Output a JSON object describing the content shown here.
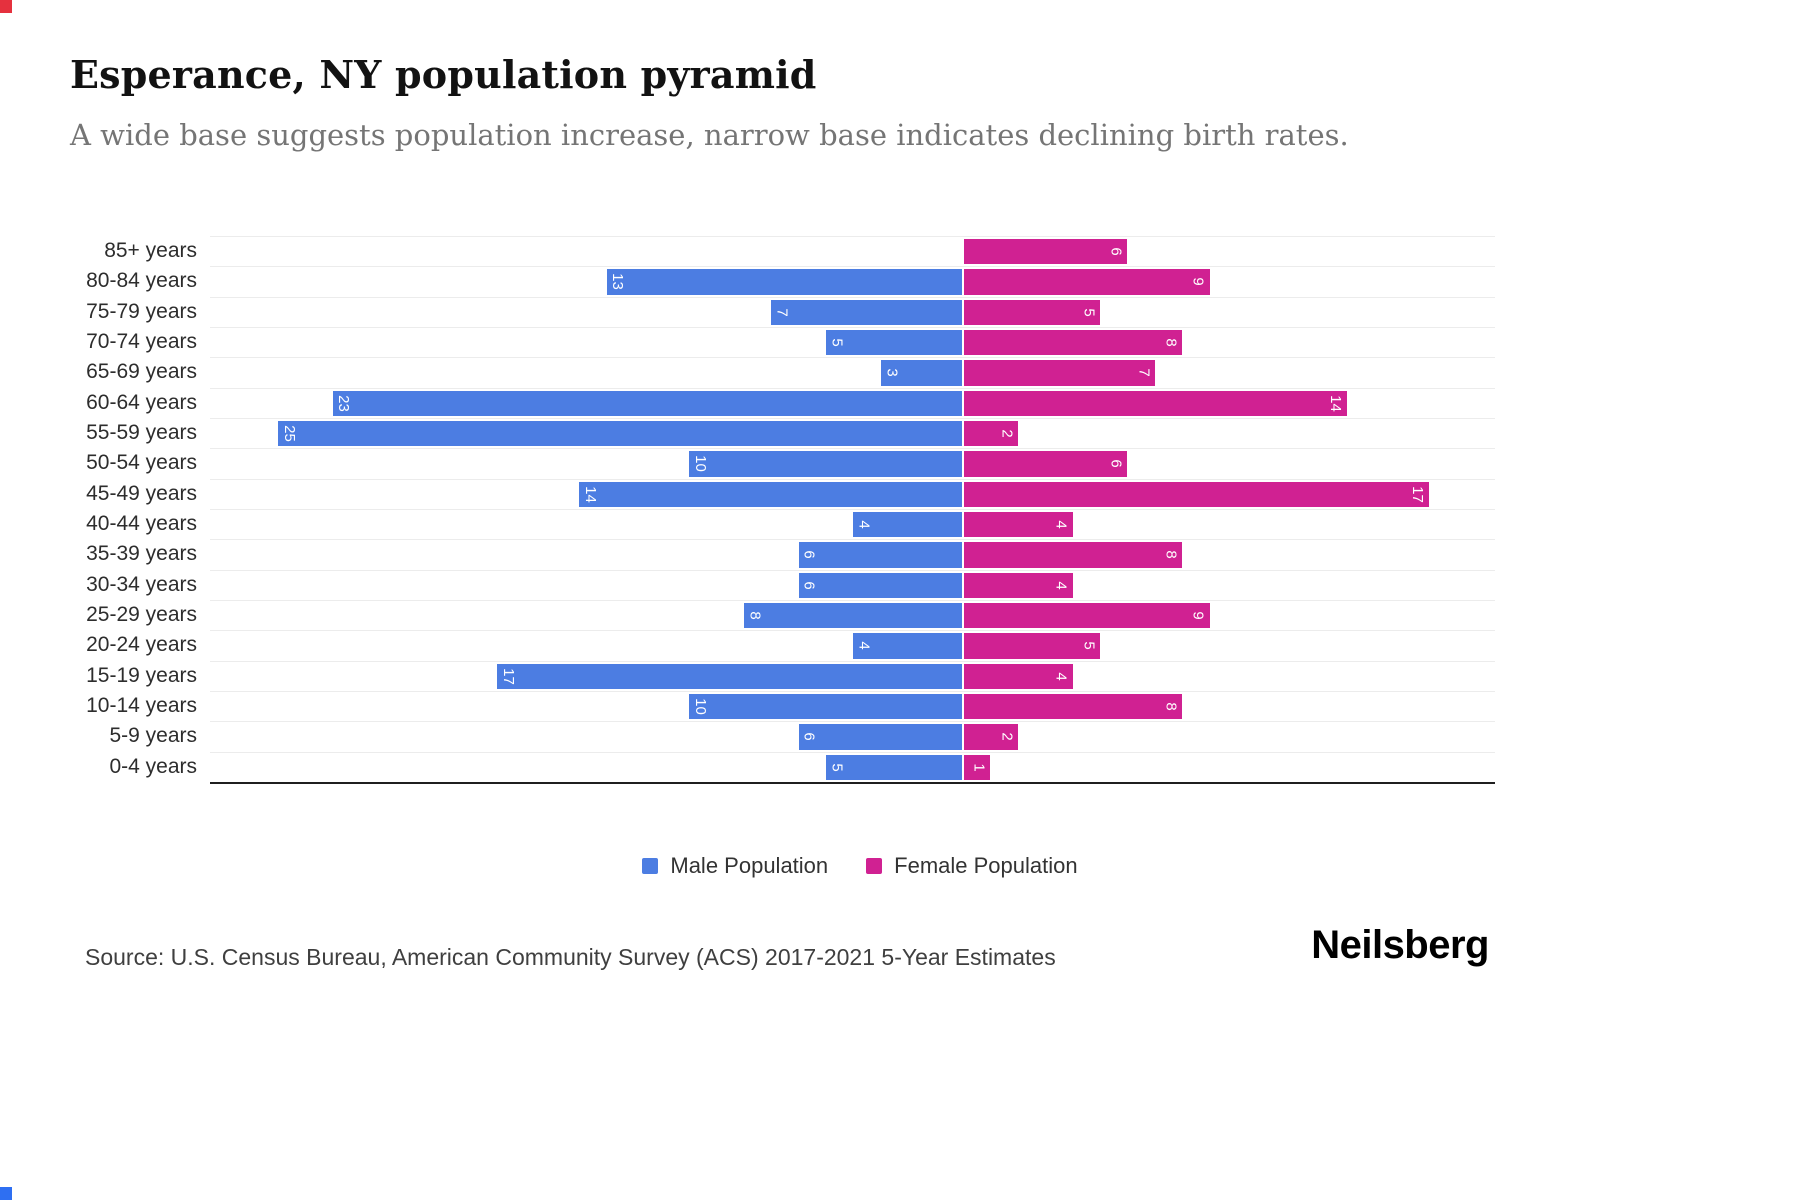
{
  "page": {
    "background": "#ffffff"
  },
  "decorations": {
    "top_left_mark_color": "#e5313e",
    "bottom_left_mark_color": "#2e6ff2"
  },
  "header": {
    "title": "Esperance, NY population pyramid",
    "subtitle": "A wide base suggests population increase, narrow base indicates declining birth rates."
  },
  "chart_data": {
    "type": "bar",
    "variant": "population-pyramid",
    "orientation": "horizontal",
    "title": "Esperance, NY population pyramid",
    "categories": [
      "85+ years",
      "80-84 years",
      "75-79 years",
      "70-74 years",
      "65-69 years",
      "60-64 years",
      "55-59 years",
      "50-54 years",
      "45-49 years",
      "40-44 years",
      "35-39 years",
      "30-34 years",
      "25-29 years",
      "20-24 years",
      "15-19 years",
      "10-14 years",
      "5-9 years",
      "0-4 years"
    ],
    "series": [
      {
        "name": "Male Population",
        "color": "#4c7de2",
        "side": "left",
        "values": [
          0,
          13,
          7,
          5,
          3,
          23,
          25,
          10,
          14,
          4,
          6,
          6,
          8,
          4,
          17,
          10,
          6,
          5
        ]
      },
      {
        "name": "Female Population",
        "color": "#d02192",
        "side": "right",
        "values": [
          6,
          9,
          5,
          8,
          7,
          14,
          2,
          6,
          17,
          4,
          8,
          4,
          9,
          5,
          4,
          8,
          2,
          1
        ]
      }
    ],
    "value_labels": "inside outer end of each bar, rotated 90 degrees, white",
    "axis": {
      "male_max": 25,
      "female_max": 17,
      "gridlines": true,
      "grid_color": "#ececec"
    },
    "legend_position": "bottom-center"
  },
  "legend": {
    "items": [
      {
        "label": "Male Population",
        "color": "#4c7de2"
      },
      {
        "label": "Female Population",
        "color": "#d02192"
      }
    ]
  },
  "footer": {
    "source": "Source: U.S. Census Bureau, American Community Survey (ACS) 2017-2021 5-Year Estimates",
    "brand": "Neilsberg"
  }
}
